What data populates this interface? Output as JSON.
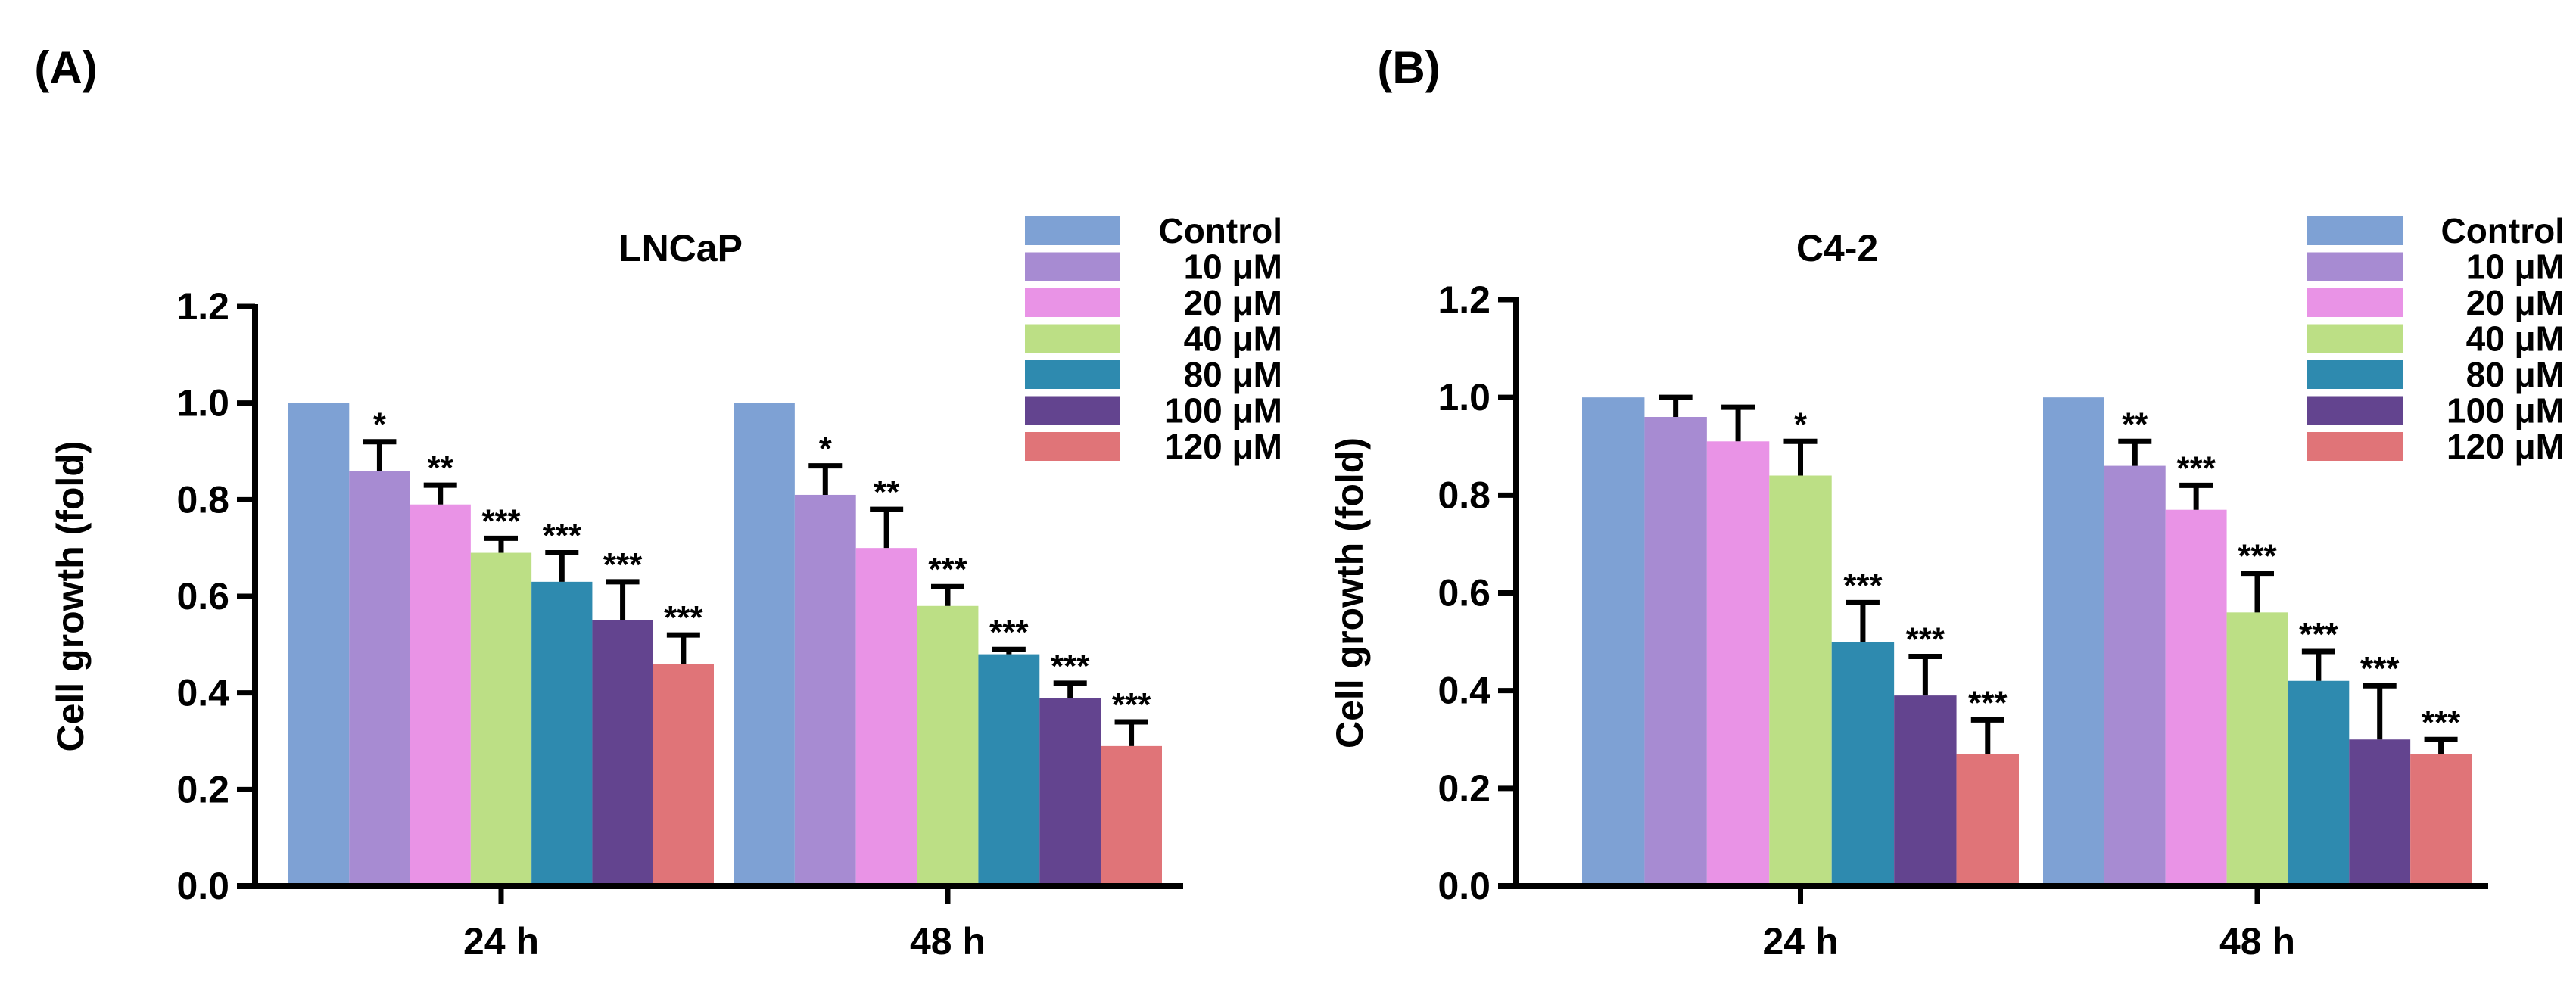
{
  "legend": [
    "Control",
    "10 μM",
    "20 μM",
    "40 μM",
    "80 μM",
    "100 μM",
    "120 μM"
  ],
  "colors": [
    "#7ea1d4",
    "#a78bd2",
    "#e993e6",
    "#bcdf85",
    "#2e8aaf",
    "#63448f",
    "#e07478"
  ],
  "chart_data": [
    {
      "type": "bar",
      "panel_label": "(A)",
      "title": "LNCaP",
      "ylabel": "Cell growth (fold)",
      "xlabel": "",
      "ylim": [
        0,
        1.2
      ],
      "yticks": [
        "0.0",
        "0.2",
        "0.4",
        "0.6",
        "0.8",
        "1.0",
        "1.2"
      ],
      "categories": [
        "24 h",
        "48 h"
      ],
      "legend_position": "top-right",
      "series": [
        {
          "name": "Control",
          "values": [
            1.0,
            1.0
          ],
          "errors": [
            0,
            0
          ],
          "sig": [
            "",
            ""
          ]
        },
        {
          "name": "10 μM",
          "values": [
            0.86,
            0.81
          ],
          "errors": [
            0.06,
            0.06
          ],
          "sig": [
            "*",
            "*"
          ]
        },
        {
          "name": "20 μM",
          "values": [
            0.79,
            0.7
          ],
          "errors": [
            0.04,
            0.08
          ],
          "sig": [
            "**",
            "**"
          ]
        },
        {
          "name": "40 μM",
          "values": [
            0.69,
            0.58
          ],
          "errors": [
            0.03,
            0.04
          ],
          "sig": [
            "***",
            "***"
          ]
        },
        {
          "name": "80 μM",
          "values": [
            0.63,
            0.48
          ],
          "errors": [
            0.06,
            0.01
          ],
          "sig": [
            "***",
            "***"
          ]
        },
        {
          "name": "100 μM",
          "values": [
            0.55,
            0.39
          ],
          "errors": [
            0.08,
            0.03
          ],
          "sig": [
            "***",
            "***"
          ]
        },
        {
          "name": "120 μM",
          "values": [
            0.46,
            0.29
          ],
          "errors": [
            0.06,
            0.05
          ],
          "sig": [
            "***",
            "***"
          ]
        }
      ]
    },
    {
      "type": "bar",
      "panel_label": "(B)",
      "title": "C4-2",
      "ylabel": "Cell growth (fold)",
      "xlabel": "",
      "ylim": [
        0,
        1.2
      ],
      "yticks": [
        "0.0",
        "0.2",
        "0.4",
        "0.6",
        "0.8",
        "1.0",
        "1.2"
      ],
      "categories": [
        "24 h",
        "48 h"
      ],
      "legend_position": "top-right",
      "series": [
        {
          "name": "Control",
          "values": [
            1.0,
            1.0
          ],
          "errors": [
            0,
            0
          ],
          "sig": [
            "",
            ""
          ]
        },
        {
          "name": "10 μM",
          "values": [
            0.96,
            0.86
          ],
          "errors": [
            0.04,
            0.05
          ],
          "sig": [
            "",
            "**"
          ]
        },
        {
          "name": "20 μM",
          "values": [
            0.91,
            0.77
          ],
          "errors": [
            0.07,
            0.05
          ],
          "sig": [
            "",
            "***"
          ]
        },
        {
          "name": "40 μM",
          "values": [
            0.84,
            0.56
          ],
          "errors": [
            0.07,
            0.08
          ],
          "sig": [
            "*",
            "***"
          ]
        },
        {
          "name": "80 μM",
          "values": [
            0.5,
            0.42
          ],
          "errors": [
            0.08,
            0.06
          ],
          "sig": [
            "***",
            "***"
          ]
        },
        {
          "name": "100 μM",
          "values": [
            0.39,
            0.3
          ],
          "errors": [
            0.08,
            0.11
          ],
          "sig": [
            "***",
            "***"
          ]
        },
        {
          "name": "120 μM",
          "values": [
            0.27,
            0.27
          ],
          "errors": [
            0.07,
            0.03
          ],
          "sig": [
            "***",
            "***"
          ]
        }
      ]
    }
  ]
}
